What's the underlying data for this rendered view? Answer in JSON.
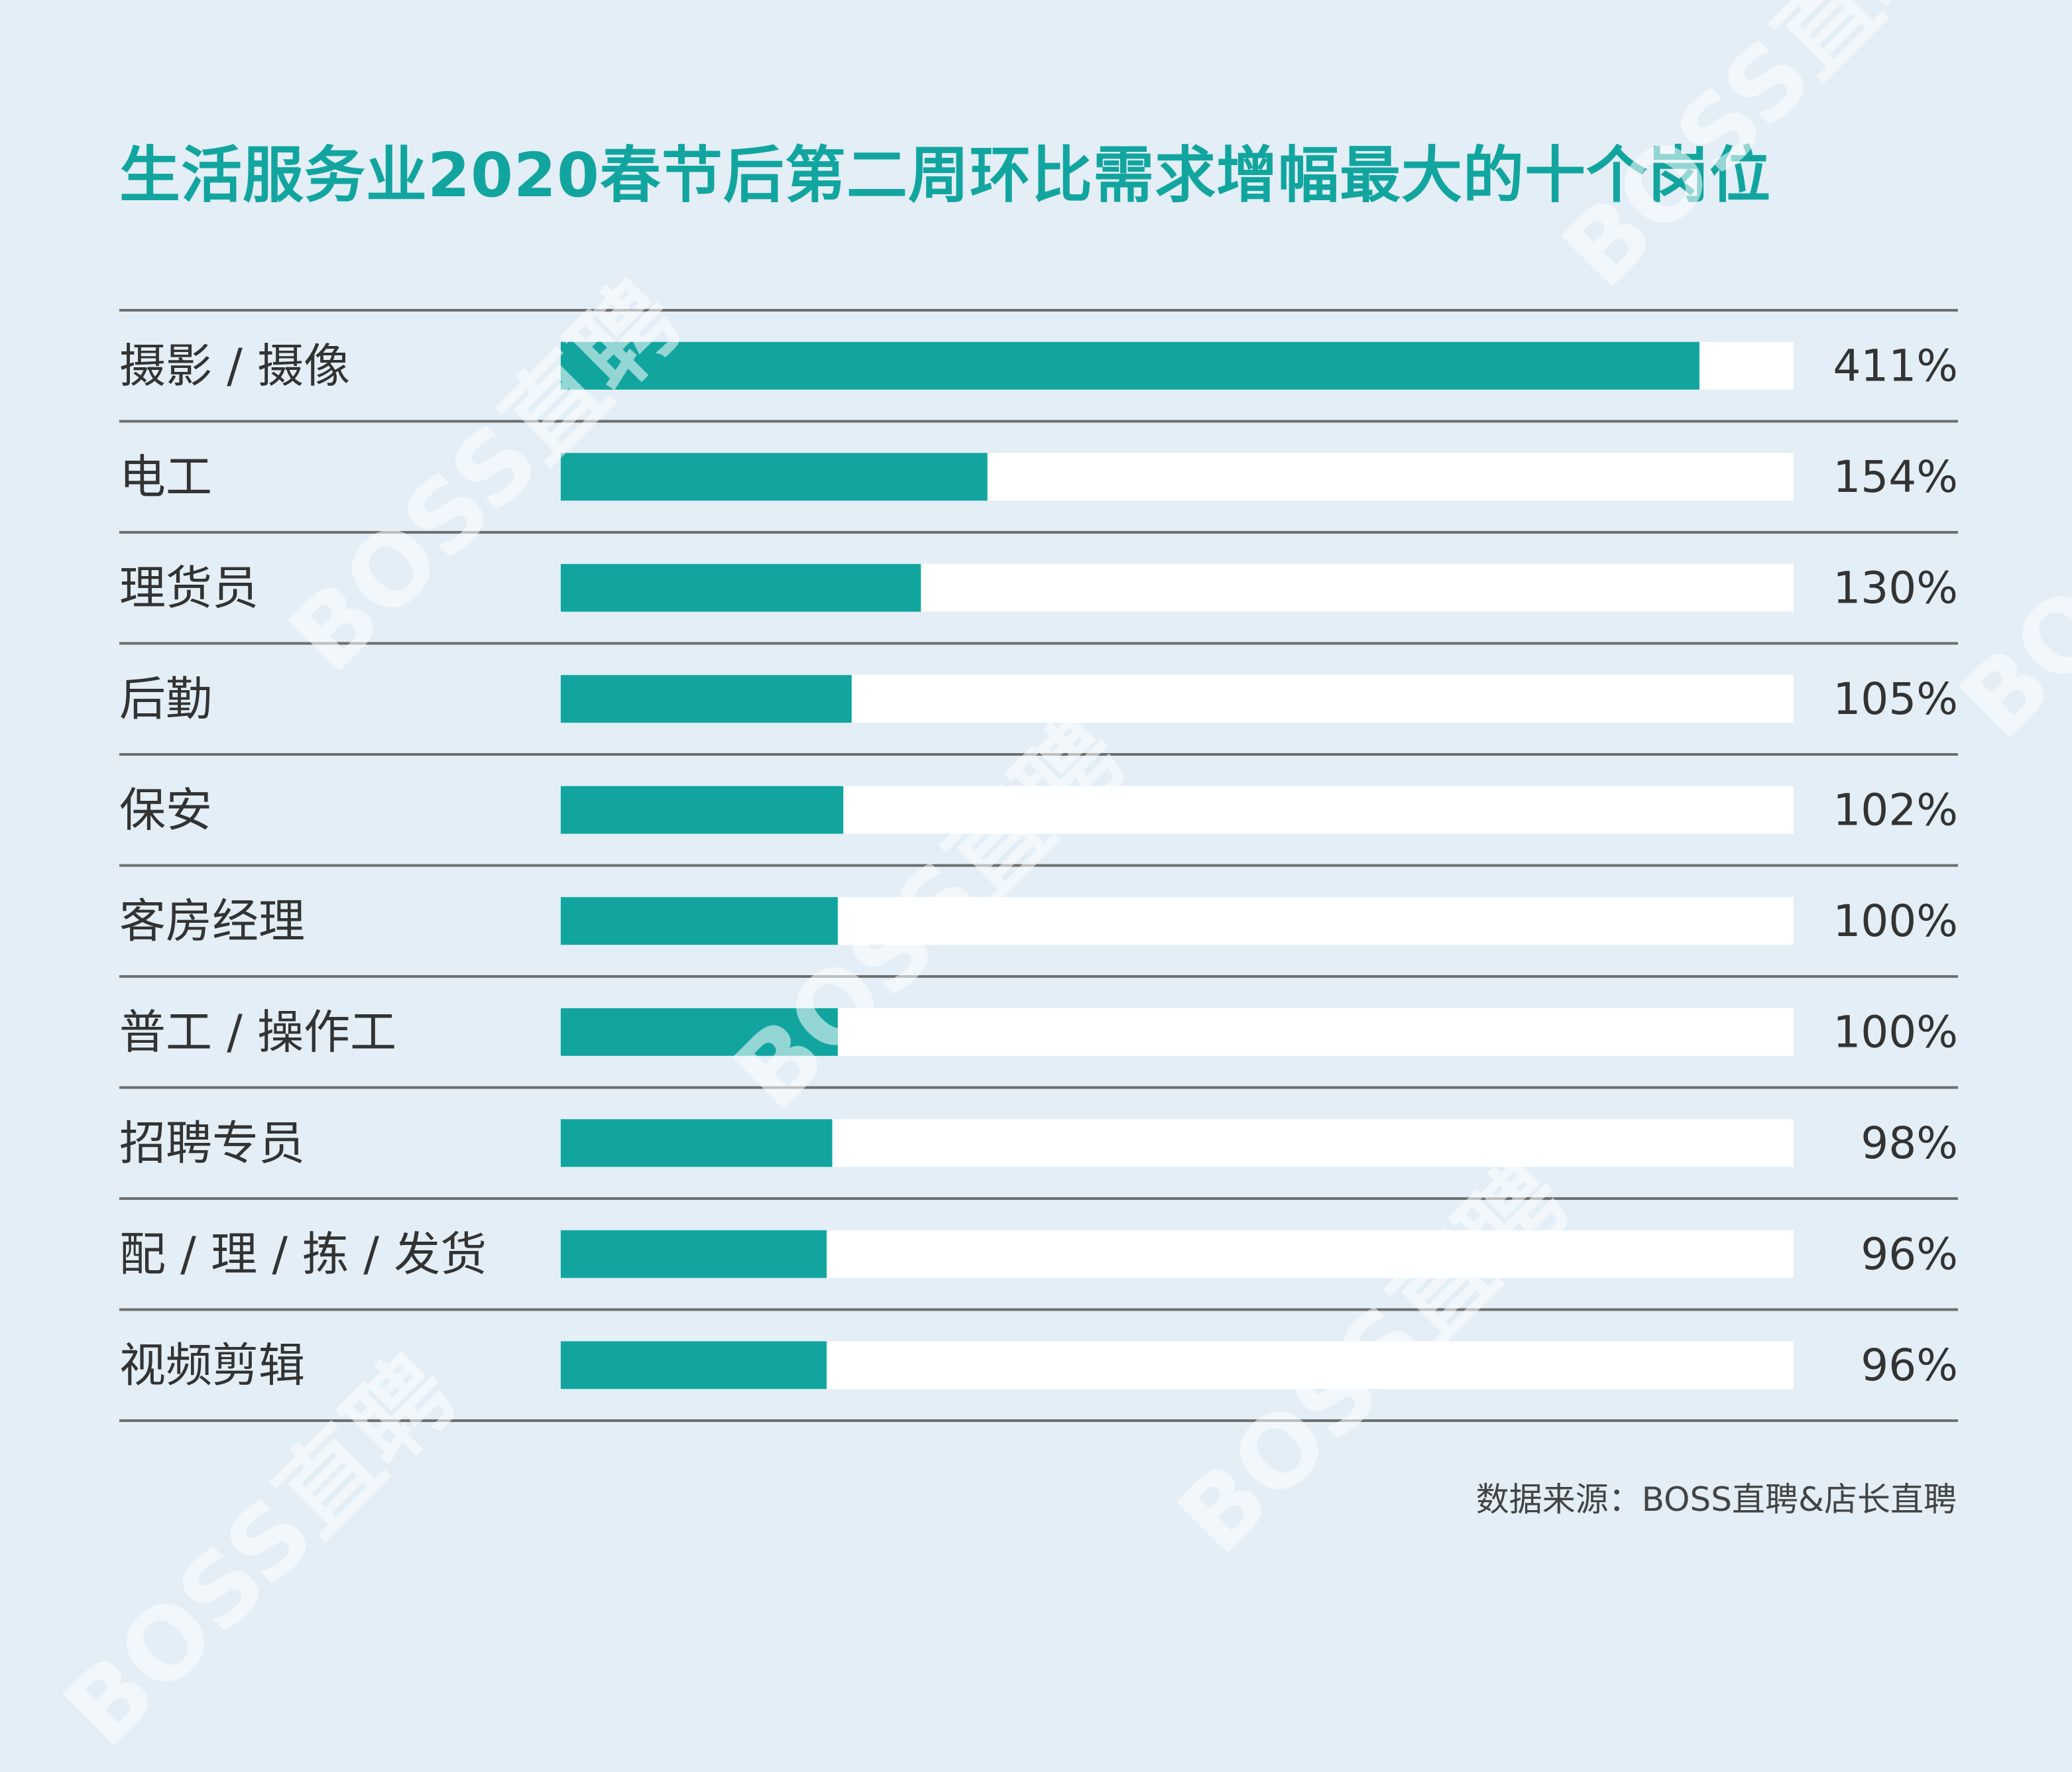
{
  "chart_data": {
    "type": "bar",
    "orientation": "horizontal",
    "title": "生活服务业2020春节后第二周环比需求增幅最大的十个岗位",
    "categories": [
      "摄影 / 摄像",
      "电工",
      "理货员",
      "后勤",
      "保安",
      "客房经理",
      "普工 / 操作工",
      "招聘专员",
      "配 / 理 / 拣 / 发货",
      "视频剪辑"
    ],
    "values": [
      411,
      154,
      130,
      105,
      102,
      100,
      100,
      98,
      96,
      96
    ],
    "value_labels": [
      "411%",
      "154%",
      "130%",
      "105%",
      "102%",
      "100%",
      "100%",
      "98%",
      "96%",
      "96%"
    ],
    "unit": "%",
    "xlim": [
      0,
      445
    ],
    "xlabel": "",
    "ylabel": "",
    "grid": false,
    "legend": "none"
  },
  "colors": {
    "bar": "#12a5a0",
    "track": "#ffffff",
    "background": "#e3eef6",
    "title": "#12a5a0",
    "divider": "#6f6f6f"
  },
  "source": "数据来源：BOSS直聘&店长直聘",
  "watermarks": [
    "BOSS直聘",
    "BOSS直聘",
    "BOSS直聘",
    "BOSS直聘",
    "BOSS直聘",
    "BOSS直聘"
  ]
}
